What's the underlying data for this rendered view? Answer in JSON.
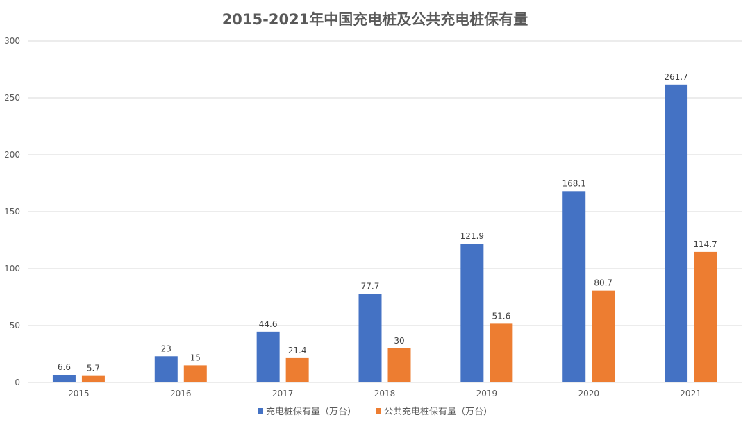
{
  "colors": {
    "series1": "#4472C4",
    "series2": "#ED7D31",
    "grid": "#D9D9D9"
  },
  "chart_data": {
    "type": "bar",
    "title": "2015-2021年中国充电桩及公共充电桩保有量",
    "xlabel": "",
    "ylabel": "",
    "categories": [
      "2015",
      "2016",
      "2017",
      "2018",
      "2019",
      "2020",
      "2021"
    ],
    "ylim": [
      0,
      300
    ],
    "yticks": [
      0,
      50,
      100,
      150,
      200,
      250,
      300
    ],
    "grid": true,
    "legend_position": "bottom",
    "series": [
      {
        "name": "充电桩保有量（万台）",
        "values": [
          6.6,
          23,
          44.6,
          77.7,
          121.9,
          168.1,
          261.7
        ]
      },
      {
        "name": "公共充电桩保有量（万台）",
        "values": [
          5.7,
          15,
          21.4,
          30,
          51.6,
          80.7,
          114.7
        ]
      }
    ]
  }
}
